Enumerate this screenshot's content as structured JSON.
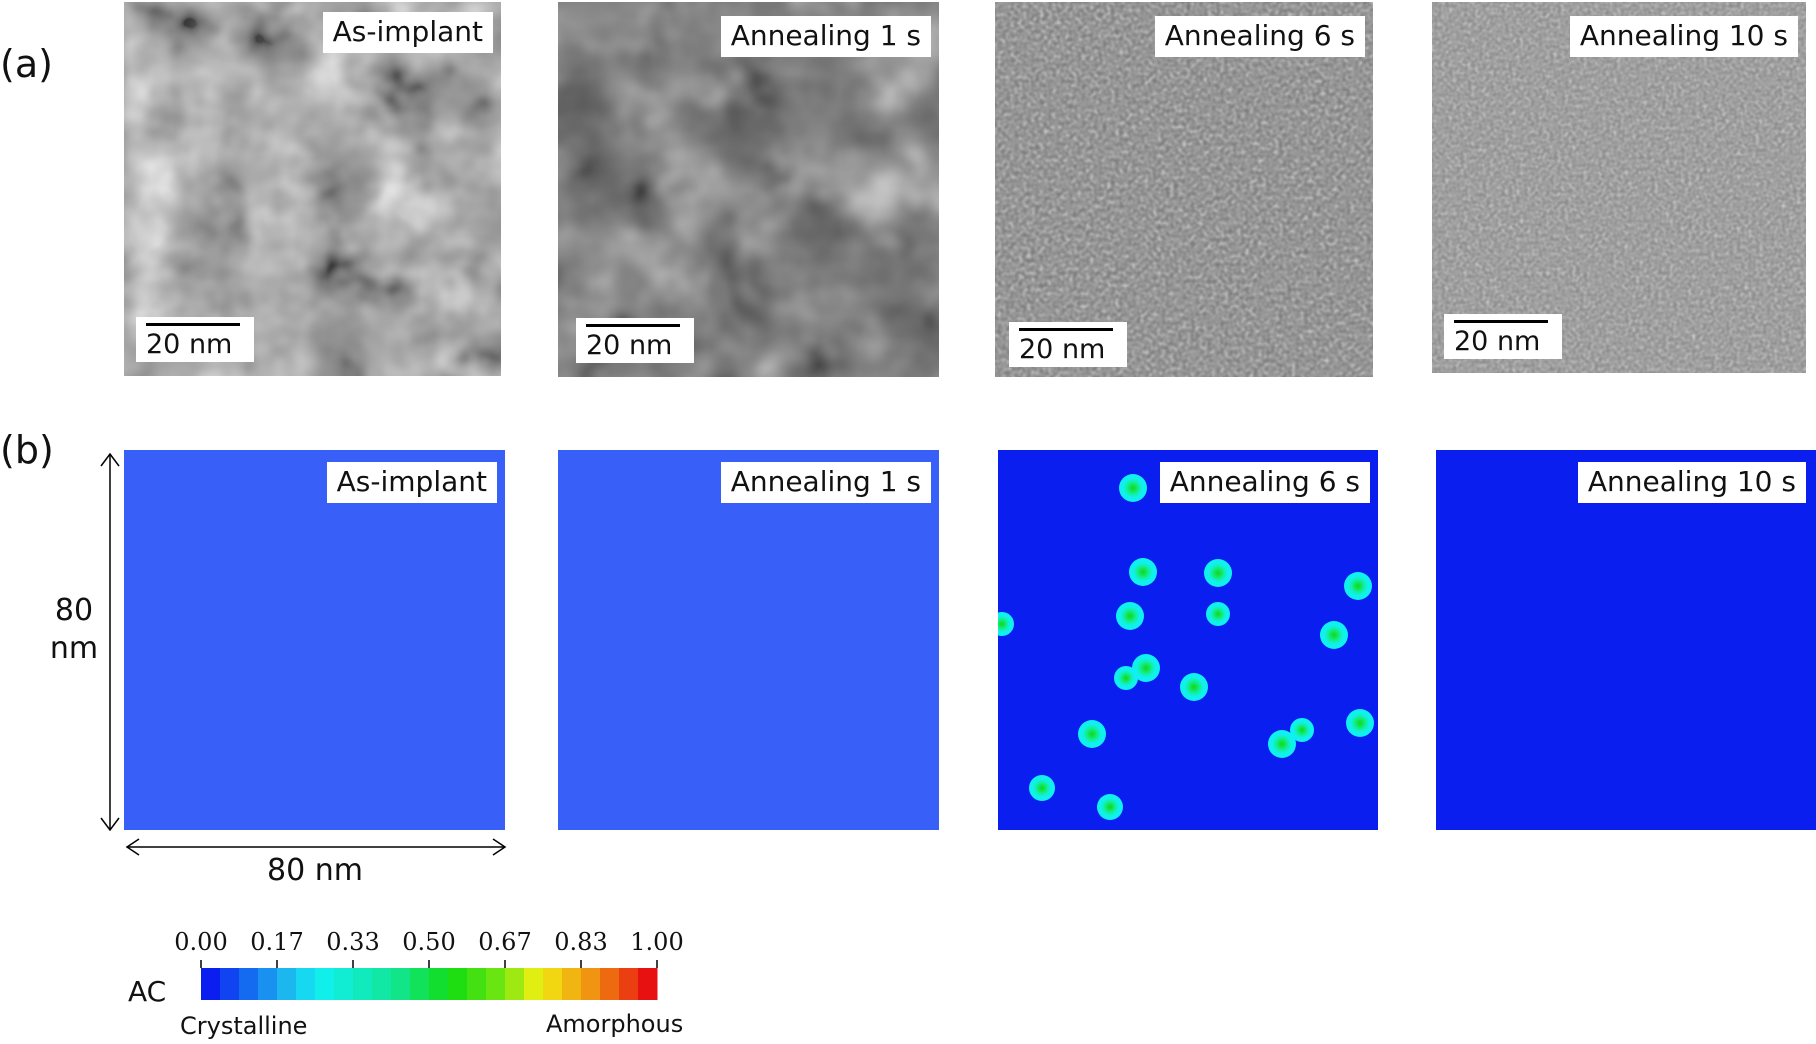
{
  "row_labels": {
    "a": "(a)",
    "b": "(b)"
  },
  "panels": [
    {
      "label": "As-implant",
      "scale": "20 nm"
    },
    {
      "label": "Annealing 1 s",
      "scale": "20 nm"
    },
    {
      "label": "Annealing 6 s",
      "scale": "20 nm"
    },
    {
      "label": "Annealing 10 s",
      "scale": "20 nm"
    }
  ],
  "dimensions": {
    "vertical": [
      "80",
      "nm"
    ],
    "horizontal": "80 nm"
  },
  "colorbar": {
    "title": "AC",
    "ticks": [
      "0.00",
      "0.17",
      "0.33",
      "0.50",
      "0.67",
      "0.83",
      "1.00"
    ],
    "left_label": "Crystalline",
    "right_label": "Amorphous"
  },
  "colors": {
    "crystalline_blue": "#0a1ef0",
    "cyan": "#11f0f0",
    "green": "#11d911",
    "yellow": "#f0f011",
    "red": "#e81111"
  }
}
